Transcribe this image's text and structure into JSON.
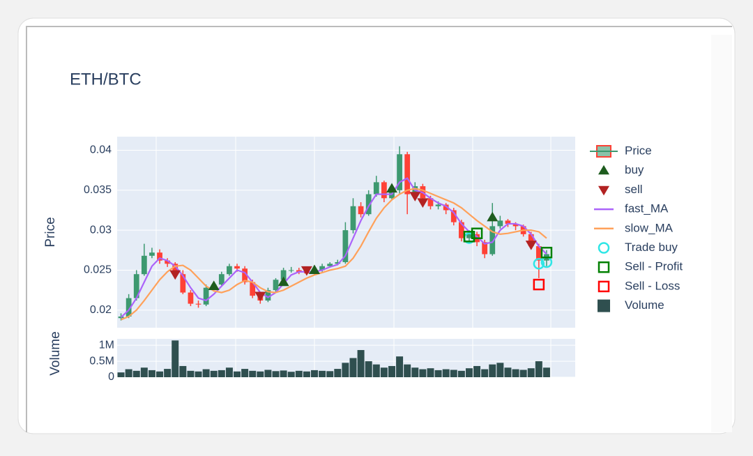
{
  "chart_data": {
    "type": "candlestick",
    "title": "ETH/BTC",
    "y_label": "Price",
    "volume_label": "Volume",
    "xlim": [
      -0.5,
      58.7
    ],
    "ylim": [
      0.0178,
      0.0417
    ],
    "yticks": [
      0.02,
      0.025,
      0.03,
      0.035,
      0.04
    ],
    "volume_ylim": [
      0,
      1200000
    ],
    "volume_yticks": [
      0,
      {
        "value": 500000,
        "label": "0.5M"
      },
      {
        "value": 1000000,
        "label": "1M"
      }
    ],
    "grid": true,
    "price": {
      "name": "Price",
      "increasing_color": "#3d9970",
      "decreasing_color": "#ff4136",
      "open": [
        0.019,
        0.0192,
        0.0215,
        0.0245,
        0.0268,
        0.0272,
        0.0262,
        0.0258,
        0.0245,
        0.0222,
        0.0208,
        0.0207,
        0.0228,
        0.0232,
        0.0245,
        0.0255,
        0.0252,
        0.0235,
        0.0218,
        0.0212,
        0.0225,
        0.0238,
        0.025,
        0.025,
        0.0248,
        0.0246,
        0.025,
        0.0255,
        0.0258,
        0.026,
        0.03,
        0.033,
        0.032,
        0.0345,
        0.036,
        0.034,
        0.035,
        0.0395,
        0.0345,
        0.0355,
        0.034,
        0.033,
        0.0332,
        0.0325,
        0.031,
        0.029,
        0.0295,
        0.0285,
        0.027,
        0.0305,
        0.0312,
        0.0308,
        0.0305,
        0.0295,
        0.028,
        0.0262
      ],
      "high": [
        0.0196,
        0.022,
        0.025,
        0.0283,
        0.0278,
        0.0276,
        0.0265,
        0.026,
        0.025,
        0.0225,
        0.0212,
        0.0232,
        0.0236,
        0.0248,
        0.0258,
        0.0258,
        0.0255,
        0.0238,
        0.022,
        0.0228,
        0.024,
        0.0253,
        0.0254,
        0.0253,
        0.025,
        0.0252,
        0.0258,
        0.026,
        0.0263,
        0.031,
        0.034,
        0.0335,
        0.035,
        0.0368,
        0.0362,
        0.0355,
        0.0405,
        0.0398,
        0.036,
        0.0358,
        0.0343,
        0.0336,
        0.0334,
        0.0328,
        0.0313,
        0.03,
        0.0298,
        0.0288,
        0.0334,
        0.0318,
        0.0314,
        0.031,
        0.0307,
        0.0298,
        0.0283,
        0.0275
      ],
      "low": [
        0.0187,
        0.019,
        0.0212,
        0.0243,
        0.0265,
        0.0258,
        0.0254,
        0.0242,
        0.022,
        0.0205,
        0.0203,
        0.0205,
        0.0226,
        0.023,
        0.0243,
        0.0248,
        0.0232,
        0.0215,
        0.0208,
        0.021,
        0.0222,
        0.0236,
        0.0247,
        0.0245,
        0.0244,
        0.0244,
        0.0248,
        0.0253,
        0.0256,
        0.0258,
        0.0296,
        0.0316,
        0.0318,
        0.0342,
        0.0335,
        0.0338,
        0.0346,
        0.032,
        0.034,
        0.0336,
        0.0326,
        0.0326,
        0.032,
        0.0306,
        0.0286,
        0.0285,
        0.028,
        0.0265,
        0.0268,
        0.0302,
        0.0304,
        0.03,
        0.0292,
        0.0276,
        0.024,
        0.0255
      ],
      "close": [
        0.0192,
        0.0215,
        0.0245,
        0.0268,
        0.0272,
        0.0262,
        0.0258,
        0.0245,
        0.0222,
        0.0208,
        0.0207,
        0.0228,
        0.0232,
        0.0245,
        0.0255,
        0.0252,
        0.0235,
        0.0218,
        0.0212,
        0.0225,
        0.0238,
        0.025,
        0.025,
        0.0248,
        0.0246,
        0.025,
        0.0255,
        0.0258,
        0.026,
        0.03,
        0.033,
        0.032,
        0.0345,
        0.036,
        0.034,
        0.035,
        0.0395,
        0.0345,
        0.0355,
        0.034,
        0.033,
        0.0332,
        0.0325,
        0.031,
        0.029,
        0.0295,
        0.0285,
        0.027,
        0.0305,
        0.0312,
        0.0308,
        0.0305,
        0.0295,
        0.028,
        0.0262,
        0.027
      ]
    },
    "markers": [
      {
        "name": "buy",
        "symbol": "triangle-up",
        "color": "#1e5c1e",
        "x": [
          12,
          21,
          25,
          35,
          48
        ],
        "values": [
          0.023,
          0.0235,
          0.025,
          0.0352,
          0.0316
        ]
      },
      {
        "name": "sell",
        "symbol": "triangle-down",
        "color": "#b22222",
        "x": [
          7,
          18,
          24,
          38,
          39,
          53
        ],
        "values": [
          0.0245,
          0.0218,
          0.025,
          0.0343,
          0.0335,
          0.0282
        ]
      },
      {
        "name": "fast_MA",
        "symbol": "line",
        "color": "#ab63fa"
      },
      {
        "name": "slow_MA",
        "symbol": "line",
        "color": "#ffa15a"
      },
      {
        "name": "Trade buy",
        "symbol": "circle-open",
        "color": "#2ee6e6",
        "x": [
          45,
          54,
          55
        ],
        "values": [
          0.029,
          0.0258,
          0.026
        ]
      },
      {
        "name": "Sell - Profit",
        "symbol": "square-open",
        "color": "#008000",
        "x": [
          45,
          46,
          55
        ],
        "values": [
          0.0292,
          0.0296,
          0.0272
        ]
      },
      {
        "name": "Sell - Loss",
        "symbol": "square-open",
        "color": "#ff0000",
        "x": [
          54
        ],
        "values": [
          0.0232
        ]
      }
    ],
    "lines": {
      "fast_MA": [
        0.0191,
        0.02,
        0.0215,
        0.0235,
        0.0255,
        0.0265,
        0.0262,
        0.0255,
        0.0243,
        0.0228,
        0.0215,
        0.0212,
        0.022,
        0.023,
        0.024,
        0.025,
        0.0247,
        0.0235,
        0.0222,
        0.0216,
        0.0222,
        0.0233,
        0.0244,
        0.0248,
        0.0248,
        0.0248,
        0.025,
        0.0254,
        0.0257,
        0.0268,
        0.029,
        0.0312,
        0.033,
        0.0345,
        0.0345,
        0.0345,
        0.036,
        0.0365,
        0.035,
        0.0347,
        0.034,
        0.0334,
        0.033,
        0.0322,
        0.0308,
        0.0298,
        0.0292,
        0.0283,
        0.0285,
        0.03,
        0.0308,
        0.0308,
        0.0305,
        0.0295,
        0.028,
        0.027
      ],
      "slow_MA": [
        0.0188,
        0.0192,
        0.02,
        0.0212,
        0.0225,
        0.0238,
        0.0248,
        0.0255,
        0.0256,
        0.025,
        0.024,
        0.023,
        0.0224,
        0.0222,
        0.0225,
        0.0232,
        0.0237,
        0.0235,
        0.0228,
        0.0223,
        0.0222,
        0.0225,
        0.023,
        0.0235,
        0.024,
        0.0244,
        0.0247,
        0.025,
        0.0252,
        0.0255,
        0.0265,
        0.028,
        0.0298,
        0.0315,
        0.0328,
        0.0338,
        0.0345,
        0.035,
        0.0352,
        0.035,
        0.0346,
        0.0342,
        0.0338,
        0.0334,
        0.0328,
        0.032,
        0.0312,
        0.0305,
        0.0298,
        0.0295,
        0.0296,
        0.0298,
        0.03,
        0.03,
        0.0298,
        0.029
      ]
    },
    "volume": {
      "name": "Volume",
      "color": "#2f4f4f",
      "values": [
        150000,
        250000,
        200000,
        300000,
        220000,
        180000,
        260000,
        1150000,
        350000,
        200000,
        180000,
        250000,
        200000,
        220000,
        300000,
        180000,
        260000,
        200000,
        180000,
        230000,
        190000,
        210000,
        170000,
        200000,
        180000,
        220000,
        200000,
        190000,
        260000,
        450000,
        600000,
        850000,
        500000,
        400000,
        300000,
        350000,
        650000,
        400000,
        300000,
        250000,
        280000,
        220000,
        250000,
        230000,
        200000,
        280000,
        350000,
        250000,
        400000,
        450000,
        300000,
        250000,
        230000,
        280000,
        500000,
        300000
      ]
    }
  }
}
